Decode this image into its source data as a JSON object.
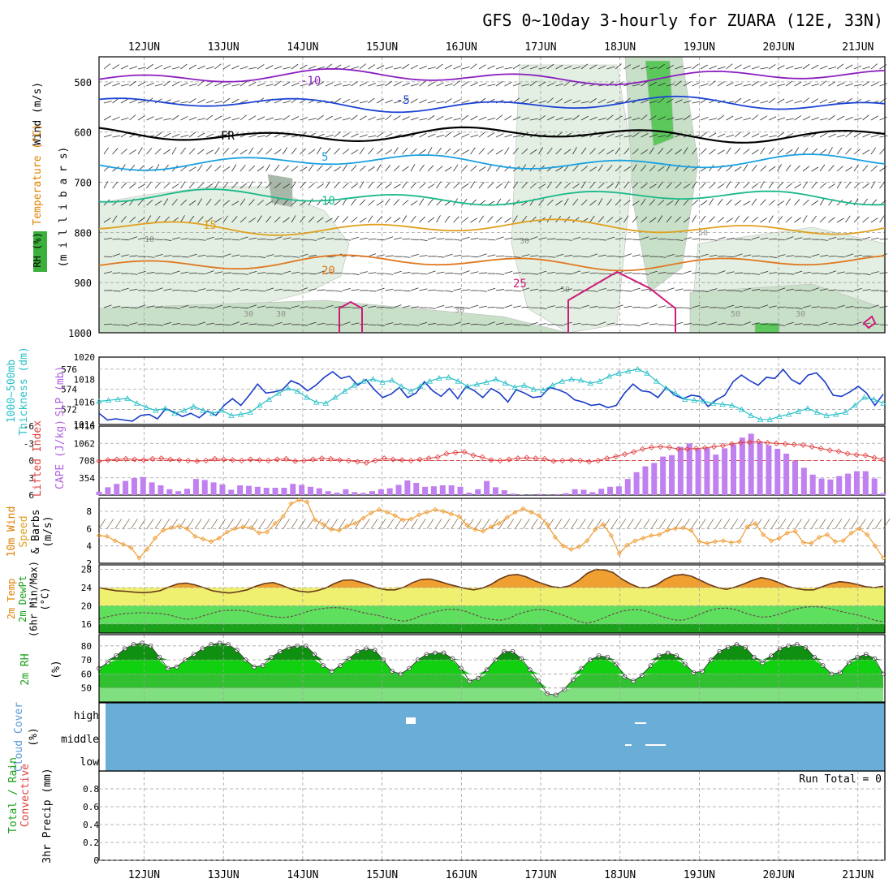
{
  "title": "GFS 0~10day 3-hourly for ZUARA (12E, 33N)",
  "dates": [
    "12JUN",
    "13JUN",
    "14JUN",
    "15JUN",
    "16JUN",
    "17JUN",
    "18JUN",
    "19JUN",
    "20JUN",
    "21JUN"
  ],
  "colors": {
    "rh_light": "#e2efe2",
    "rh_mid": "#c8dfc8",
    "rh_dark": "#a8b8a8",
    "rh_green": "#5cc85c",
    "t_m10": "#8a1fbf",
    "t_m5": "#1c44d4",
    "t_fr": "#000000",
    "t_5": "#1aa0e0",
    "t_10": "#1ab88a",
    "t_15": "#e0a020",
    "t_20": "#e07820",
    "t_25": "#d01a7a",
    "slp": "#1a3cc8",
    "thick": "#28c0c8",
    "li": "#e04040",
    "cape": "#c080f0",
    "wind_speed": "#f09a30",
    "barbs": "#8a6a4a",
    "temp_fill": "#f0a030",
    "dew_fill": "#f0f070",
    "green_fill": "#3cc83c",
    "rh2m_dark": "#1aa01a",
    "rh2m_light": "#80e080",
    "cloud": "#6aaed8",
    "grid": "#a0a0a0"
  },
  "chart_data": [
    {
      "panel": "upper-air",
      "type": "heatmap",
      "ylabels": [
        "Wind (m/s)",
        "Temperature (°C)",
        "RH (%)",
        "(m i l l i b a r s)"
      ],
      "yticks": [
        500,
        600,
        700,
        800,
        900,
        1000
      ],
      "ylim": [
        1000,
        450
      ],
      "isotherms": [
        {
          "label": "-10",
          "level": 490
        },
        {
          "label": "-5",
          "level": 545
        },
        {
          "label": "FR",
          "level": 605
        },
        {
          "label": "5",
          "level": 660
        },
        {
          "label": "10",
          "level": 730
        },
        {
          "label": "15",
          "level": 790
        },
        {
          "label": "20",
          "level": 860
        },
        {
          "label": "25",
          "level": 960
        }
      ],
      "rh_labels": [
        "10",
        "30",
        "30",
        "30",
        "30",
        "50",
        "50",
        "50",
        "30"
      ]
    },
    {
      "panel": "slp-thickness",
      "type": "line",
      "ylabels": [
        "1000~500mb",
        "Thickness (dm)",
        "SLP (mb)"
      ],
      "yticks_left": [
        572,
        574,
        576
      ],
      "yticks_right": [
        1014,
        1016,
        1018,
        1020
      ],
      "ylim_left": [
        570.5,
        577.2
      ],
      "ylim_right": [
        1014,
        1020
      ],
      "series": [
        {
          "name": "SLP",
          "values": [
            1015.0,
            1014.4,
            1014.5,
            1014.4,
            1014.3,
            1014.8,
            1014.9,
            1014.5,
            1015.4,
            1015.1,
            1014.7,
            1015.0,
            1014.6,
            1015.2,
            1014.8,
            1015.7,
            1016.3,
            1015.7,
            1016.6,
            1017.6,
            1016.8,
            1016.9,
            1017.1,
            1017.9,
            1017.6,
            1017.0,
            1017.5,
            1018.2,
            1018.7,
            1018.1,
            1018.3,
            1017.5,
            1018.0,
            1017.1,
            1016.4,
            1016.7,
            1017.3,
            1016.4,
            1016.8,
            1017.8,
            1017.0,
            1016.5,
            1017.2,
            1016.3,
            1017.4,
            1017.0,
            1016.4,
            1017.2,
            1016.8,
            1016.0,
            1017.1,
            1016.8,
            1016.4,
            1016.5,
            1017.3,
            1017.1,
            1016.8,
            1016.2,
            1016.0,
            1015.7,
            1015.8,
            1015.5,
            1015.7,
            1016.8,
            1017.6,
            1017.0,
            1016.9,
            1016.4,
            1017.3,
            1016.6,
            1016.3,
            1016.6,
            1016.5,
            1015.6,
            1016.2,
            1016.6,
            1017.8,
            1018.4,
            1017.9,
            1017.5,
            1018.2,
            1018.1,
            1018.9,
            1018.0,
            1017.6,
            1018.4,
            1018.6,
            1017.8,
            1016.6,
            1016.5,
            1016.9,
            1017.4,
            1016.8,
            1015.7,
            1016.7
          ]
        },
        {
          "name": "Thickness",
          "values": [
            572.8,
            572.9,
            573.0,
            573.1,
            572.6,
            572.2,
            571.9,
            572.1,
            571.6,
            571.9,
            572.3,
            571.9,
            571.6,
            571.9,
            571.4,
            571.5,
            571.7,
            572.4,
            573.0,
            573.6,
            574.1,
            573.8,
            573.2,
            572.7,
            572.6,
            573.2,
            573.8,
            574.4,
            574.8,
            575.0,
            574.7,
            574.9,
            574.3,
            573.8,
            574.3,
            574.8,
            575.1,
            575.2,
            574.8,
            574.3,
            574.5,
            574.7,
            575.0,
            574.6,
            574.2,
            574.4,
            574.0,
            573.9,
            574.4,
            574.8,
            575.0,
            574.9,
            574.6,
            574.8,
            575.3,
            575.6,
            575.8,
            576.0,
            575.6,
            574.8,
            574.1,
            573.6,
            573.0,
            572.9,
            572.8,
            572.6,
            572.5,
            572.4,
            572.0,
            571.4,
            571.0,
            571.0,
            571.3,
            571.5,
            571.8,
            572.1,
            571.7,
            571.4,
            571.5,
            571.7,
            572.4,
            573.2,
            573.0,
            572.6
          ]
        }
      ]
    },
    {
      "panel": "cape-li",
      "type": "bar",
      "ylabels": [
        "Lifted Index",
        "CAPE (J/kg)"
      ],
      "yticks_left": [
        -6,
        -3,
        0,
        3,
        6
      ],
      "yticks_right": [
        354,
        708,
        1062,
        1416
      ],
      "ylim_left": [
        6,
        -6
      ],
      "ylim_right": [
        0,
        1416
      ],
      "series": [
        {
          "name": "CAPE",
          "values": [
            70,
            160,
            230,
            290,
            350,
            370,
            260,
            200,
            120,
            80,
            130,
            330,
            310,
            260,
            220,
            110,
            200,
            190,
            170,
            150,
            150,
            150,
            230,
            210,
            170,
            140,
            80,
            50,
            120,
            60,
            45,
            80,
            120,
            140,
            210,
            300,
            250,
            170,
            180,
            200,
            200,
            170,
            50,
            120,
            290,
            160,
            100,
            30,
            10,
            5,
            25,
            5,
            20,
            40,
            120,
            110,
            60,
            130,
            170,
            180,
            330,
            470,
            590,
            660,
            790,
            820,
            990,
            1060,
            950,
            970,
            830,
            960,
            1040,
            1180,
            1260,
            1100,
            1020,
            950,
            850,
            700,
            560,
            420,
            340,
            320,
            390,
            440,
            490,
            490,
            340,
            40
          ]
        },
        {
          "name": "Lifted Index",
          "values": [
            0.1,
            -0.1,
            -0.2,
            -0.3,
            -0.2,
            -0.1,
            -0.3,
            -0.4,
            -0.2,
            -0.1,
            0.0,
            0.1,
            0.0,
            -0.3,
            -0.2,
            -0.1,
            0.0,
            -0.2,
            -0.1,
            0.0,
            -0.2,
            -0.3,
            0.1,
            0.0,
            -0.2,
            -0.4,
            -0.3,
            -0.1,
            0.0,
            0.2,
            0.4,
            0.0,
            -0.4,
            -0.2,
            -0.1,
            0.0,
            -0.2,
            -0.4,
            -0.6,
            -1.2,
            -1.4,
            -1.5,
            -0.9,
            -0.6,
            -0.1,
            0.0,
            -0.2,
            -0.4,
            -0.5,
            -0.4,
            -0.3,
            0.1,
            0.0,
            -0.1,
            0.0,
            0.2,
            0.0,
            -0.4,
            -0.7,
            -1.1,
            -1.5,
            -2.0,
            -2.3,
            -2.4,
            -2.3,
            -2.0,
            -2.0,
            -2.1,
            -2.2,
            -2.4,
            -2.6,
            -2.9,
            -3.1,
            -3.2,
            -3.3,
            -3.1,
            -3.0,
            -2.9,
            -2.8,
            -2.7,
            -2.4,
            -2.1,
            -1.8,
            -1.6,
            -1.2,
            -1.0,
            -0.9,
            -0.5,
            -0.2
          ]
        }
      ]
    },
    {
      "panel": "10m-wind",
      "type": "line",
      "ylabels": [
        "10m Wind",
        "Speed",
        "& Barbs",
        "(m/s)"
      ],
      "yticks": [
        2,
        4,
        6,
        8
      ],
      "ylim": [
        2,
        9.5
      ],
      "series": [
        {
          "name": "Speed",
          "values": [
            5.2,
            5.1,
            4.6,
            4.2,
            3.8,
            2.6,
            3.6,
            4.9,
            5.8,
            6.1,
            6.3,
            6.0,
            5.1,
            4.8,
            4.5,
            4.9,
            5.6,
            6.0,
            6.2,
            6.1,
            5.5,
            5.6,
            6.6,
            7.4,
            8.9,
            9.3,
            9.1,
            7.0,
            6.5,
            5.9,
            5.8,
            6.3,
            6.6,
            7.2,
            7.8,
            8.2,
            7.9,
            7.5,
            7.0,
            7.1,
            7.6,
            7.9,
            8.2,
            8.0,
            7.7,
            7.4,
            6.4,
            5.9,
            5.7,
            6.2,
            6.6,
            7.3,
            7.9,
            8.3,
            7.9,
            7.5,
            6.5,
            5.0,
            4.0,
            3.6,
            3.9,
            4.6,
            5.9,
            6.5,
            5.2,
            3.1,
            4.1,
            4.6,
            4.9,
            5.2,
            5.3,
            5.8,
            6.0,
            6.1,
            5.8,
            4.5,
            4.3,
            4.5,
            4.6,
            4.4,
            4.5,
            6.2,
            6.6,
            5.3,
            4.6,
            4.9,
            5.5,
            5.7,
            4.4,
            4.3,
            5.0,
            5.3,
            4.5,
            4.6,
            5.5,
            6.0,
            5.3,
            4.0,
            2.6
          ]
        }
      ]
    },
    {
      "panel": "2m-temp",
      "type": "area",
      "ylabels": [
        "2m Temp",
        "2m DewPt",
        "(6hr Min/Max)",
        "(°C)"
      ],
      "yticks": [
        16,
        20,
        24,
        28
      ],
      "ylim": [
        14,
        29
      ],
      "series": [
        {
          "name": "Temp",
          "values": [
            24.0,
            23.6,
            23.3,
            23.2,
            23.0,
            22.9,
            23.0,
            23.3,
            24.1,
            24.8,
            25.0,
            24.6,
            24.0,
            23.3,
            23.0,
            22.8,
            23.1,
            23.5,
            24.3,
            24.9,
            25.1,
            24.5,
            23.7,
            23.2,
            23.0,
            23.3,
            23.9,
            24.9,
            25.6,
            25.7,
            25.2,
            24.6,
            23.9,
            23.5,
            23.5,
            24.1,
            25.1,
            25.8,
            25.9,
            25.4,
            24.8,
            24.3,
            23.8,
            23.5,
            23.9,
            24.7,
            25.9,
            26.7,
            26.9,
            26.4,
            25.5,
            24.8,
            24.2,
            24.0,
            24.4,
            25.5,
            27.1,
            28.0,
            27.9,
            27.3,
            25.9,
            24.8,
            24.0,
            24.0,
            24.6,
            25.9,
            26.7,
            26.9,
            26.5,
            25.6,
            24.7,
            24.0,
            23.6,
            24.1,
            24.8,
            25.6,
            26.2,
            25.8,
            25.1,
            24.3,
            23.8,
            23.5,
            23.5,
            24.2,
            24.9,
            25.3,
            25.1,
            24.7,
            24.2,
            24.0,
            24.3
          ]
        },
        {
          "name": "DewPt",
          "values": [
            17.1,
            17.6,
            18.0,
            18.3,
            18.4,
            18.5,
            18.4,
            18.3,
            18.0,
            17.5,
            17.0,
            17.2,
            17.8,
            18.4,
            18.9,
            19.0,
            19.0,
            18.8,
            18.3,
            17.9,
            17.6,
            17.4,
            17.6,
            18.1,
            18.8,
            19.2,
            19.5,
            19.6,
            19.5,
            19.1,
            18.6,
            18.2,
            17.9,
            17.4,
            16.9,
            16.6,
            17.0,
            17.9,
            18.4,
            18.9,
            19.2,
            19.2,
            18.8,
            18.1,
            17.4,
            17.0,
            16.8,
            17.2,
            18.1,
            18.7,
            19.1,
            19.2,
            18.7,
            18.1,
            17.4,
            16.6,
            16.2,
            16.6,
            17.4,
            18.2,
            18.8,
            19.1,
            19.1,
            18.7,
            18.0,
            17.4,
            16.9,
            16.8,
            17.4,
            18.2,
            18.9,
            19.4,
            19.5,
            19.2,
            18.5,
            17.9,
            17.5,
            17.6,
            18.1,
            18.7,
            19.3,
            19.7,
            19.8,
            19.7,
            19.3,
            18.8,
            18.4,
            18.0,
            17.5,
            16.8,
            16.5
          ]
        }
      ]
    },
    {
      "panel": "2m-rh",
      "type": "area",
      "ylabels": [
        "2m RH",
        "(%)"
      ],
      "yticks": [
        50,
        60,
        70,
        80
      ],
      "ylim": [
        40,
        88
      ],
      "series": [
        {
          "name": "RH",
          "values": [
            64,
            68,
            73,
            78,
            81,
            82,
            80,
            72,
            64,
            65,
            70,
            74,
            78,
            81,
            82,
            81,
            77,
            70,
            65,
            66,
            72,
            76,
            79,
            80,
            80,
            74,
            66,
            62,
            66,
            71,
            76,
            78,
            77,
            70,
            62,
            60,
            64,
            70,
            74,
            75,
            75,
            71,
            64,
            55,
            57,
            63,
            70,
            76,
            76,
            71,
            63,
            55,
            46,
            45,
            49,
            56,
            64,
            70,
            73,
            72,
            67,
            58,
            55,
            59,
            66,
            73,
            75,
            73,
            67,
            61,
            62,
            70,
            76,
            79,
            81,
            79,
            72,
            68,
            73,
            78,
            80,
            81,
            79,
            72,
            66,
            60,
            61,
            68,
            72,
            74,
            71,
            60
          ]
        }
      ]
    },
    {
      "panel": "cloud-cover",
      "type": "heatmap",
      "ylabels": [
        "Cloud Cover",
        "(%)"
      ],
      "yticks": [
        "high",
        "middle",
        "low"
      ]
    },
    {
      "panel": "precip",
      "type": "bar",
      "ylabels": [
        "Total / Rain",
        "Convective",
        "3hr Precip (mm)"
      ],
      "yticks": [
        0,
        0.2,
        0.4,
        0.6,
        0.8
      ],
      "ylim": [
        0,
        1.0
      ],
      "run_total": "Run Total = 0",
      "series": [
        {
          "name": "Total / Rain",
          "values": []
        },
        {
          "name": "Convective",
          "values": []
        }
      ]
    }
  ]
}
